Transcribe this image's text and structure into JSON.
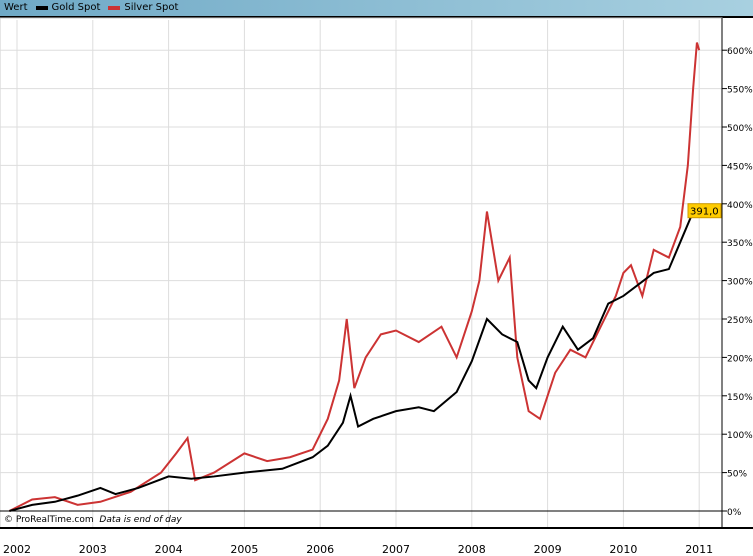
{
  "legend": {
    "label": "Wert",
    "series": [
      {
        "name": "Gold Spot",
        "color": "#000000"
      },
      {
        "name": "Silver Spot",
        "color": "#cc3333"
      }
    ]
  },
  "footer": {
    "copyright": "© ProRealTime.com",
    "note": "Data is end of day"
  },
  "last_value": {
    "text": "391,0",
    "color": "#ffcc00"
  },
  "chart_data": {
    "type": "line",
    "xlabel": "",
    "ylabel": "",
    "xlim": [
      2001.9,
      2011.2
    ],
    "ylim": [
      -5,
      640
    ],
    "x_ticks": [
      "2002",
      "2003",
      "2004",
      "2005",
      "2006",
      "2007",
      "2008",
      "2009",
      "2010",
      "2011"
    ],
    "y_ticks": [
      "0%",
      "50%",
      "100%",
      "150%",
      "200%",
      "250%",
      "300%",
      "350%",
      "400%",
      "450%",
      "500%",
      "550%",
      "600%"
    ],
    "grid": true,
    "legend_position": "top-left",
    "series": [
      {
        "name": "Gold Spot",
        "color": "#000000",
        "x": [
          2001.9,
          2002.2,
          2002.5,
          2002.8,
          2003.1,
          2003.3,
          2003.6,
          2004.0,
          2004.3,
          2004.6,
          2005.0,
          2005.5,
          2005.9,
          2006.1,
          2006.3,
          2006.4,
          2006.5,
          2006.7,
          2007.0,
          2007.3,
          2007.5,
          2007.8,
          2008.0,
          2008.2,
          2008.4,
          2008.6,
          2008.75,
          2008.85,
          2009.0,
          2009.2,
          2009.4,
          2009.6,
          2009.8,
          2010.0,
          2010.2,
          2010.4,
          2010.6,
          2010.75,
          2010.9,
          2011.0
        ],
        "y": [
          0,
          8,
          12,
          20,
          30,
          22,
          30,
          45,
          42,
          45,
          50,
          55,
          70,
          85,
          115,
          150,
          110,
          120,
          130,
          135,
          130,
          155,
          195,
          250,
          230,
          220,
          170,
          160,
          200,
          240,
          210,
          225,
          270,
          280,
          295,
          310,
          315,
          350,
          385,
          391
        ]
      },
      {
        "name": "Silver Spot",
        "color": "#cc3333",
        "x": [
          2001.9,
          2002.2,
          2002.5,
          2002.8,
          2003.1,
          2003.5,
          2003.9,
          2004.1,
          2004.25,
          2004.35,
          2004.6,
          2005.0,
          2005.3,
          2005.6,
          2005.9,
          2006.1,
          2006.25,
          2006.35,
          2006.45,
          2006.6,
          2006.8,
          2007.0,
          2007.3,
          2007.6,
          2007.8,
          2008.0,
          2008.1,
          2008.2,
          2008.35,
          2008.5,
          2008.6,
          2008.75,
          2008.9,
          2009.1,
          2009.3,
          2009.5,
          2009.7,
          2009.9,
          2010.0,
          2010.1,
          2010.25,
          2010.4,
          2010.6,
          2010.75,
          2010.85,
          2010.92,
          2010.97,
          2011.0
        ],
        "y": [
          0,
          15,
          18,
          8,
          12,
          25,
          50,
          75,
          95,
          40,
          50,
          75,
          65,
          70,
          80,
          120,
          170,
          250,
          160,
          200,
          230,
          235,
          220,
          240,
          200,
          260,
          300,
          390,
          300,
          330,
          200,
          130,
          120,
          180,
          210,
          200,
          240,
          280,
          310,
          320,
          280,
          340,
          330,
          370,
          450,
          550,
          610,
          600
        ]
      }
    ]
  }
}
